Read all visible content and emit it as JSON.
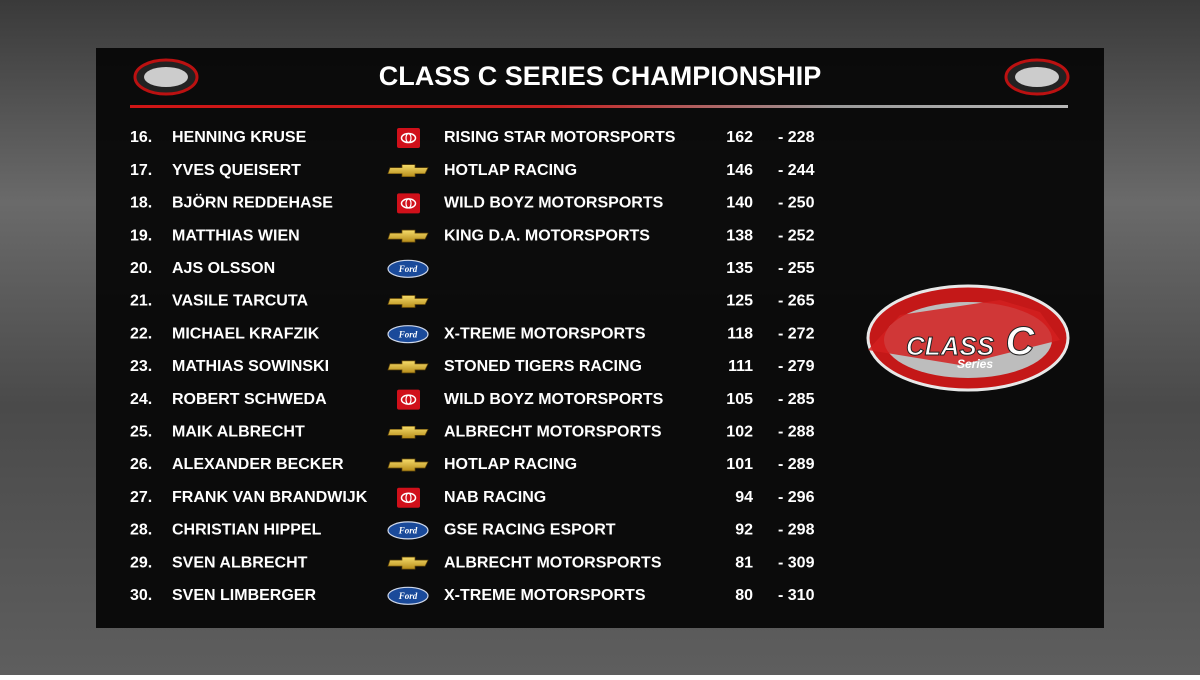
{
  "header": {
    "title": "CLASS C SERIES CHAMPIONSHIP"
  },
  "logo": {
    "main": "CLASS",
    "letter": "C",
    "sub": "Series"
  },
  "table": {
    "rows": [
      {
        "pos": "16.",
        "driver": "HENNING KRUSE",
        "make": "toyota",
        "team": "RISING STAR MOTORSPORTS",
        "points": 162,
        "gap": "- 228"
      },
      {
        "pos": "17.",
        "driver": "YVES QUEISERT",
        "make": "chevrolet",
        "team": "HOTLAP RACING",
        "points": 146,
        "gap": "- 244"
      },
      {
        "pos": "18.",
        "driver": "BJÖRN REDDEHASE",
        "make": "toyota",
        "team": "WILD BOYZ MOTORSPORTS",
        "points": 140,
        "gap": "- 250"
      },
      {
        "pos": "19.",
        "driver": "MATTHIAS WIEN",
        "make": "chevrolet",
        "team": "KING D.A. MOTORSPORTS",
        "points": 138,
        "gap": "- 252"
      },
      {
        "pos": "20.",
        "driver": "AJS OLSSON",
        "make": "Ford",
        "team": null,
        "points": 135,
        "gap": "- 255"
      },
      {
        "pos": "21.",
        "driver": "VASILE TARCUTA",
        "make": "chevrolet",
        "team": null,
        "points": 125,
        "gap": "- 265"
      },
      {
        "pos": "22.",
        "driver": "MICHAEL KRAFZIK",
        "make": "Ford",
        "team": "X-TREME MOTORSPORTS",
        "points": 118,
        "gap": "- 272"
      },
      {
        "pos": "23.",
        "driver": "MATHIAS SOWINSKI",
        "make": "chevrolet",
        "team": "STONED TIGERS RACING",
        "points": 111,
        "gap": "- 279"
      },
      {
        "pos": "24.",
        "driver": "ROBERT SCHWEDA",
        "make": "toyota",
        "team": "WILD BOYZ MOTORSPORTS",
        "points": 105,
        "gap": "- 285"
      },
      {
        "pos": "25.",
        "driver": "MAIK ALBRECHT",
        "make": "chevrolet",
        "team": "ALBRECHT MOTORSPORTS",
        "points": 102,
        "gap": "- 288"
      },
      {
        "pos": "26.",
        "driver": "ALEXANDER BECKER",
        "make": "chevrolet",
        "team": "HOTLAP RACING",
        "points": 101,
        "gap": "- 289"
      },
      {
        "pos": "27.",
        "driver": "FRANK VAN BRANDWIJK",
        "make": "toyota",
        "team": "NAB RACING",
        "points": 94,
        "gap": "- 296"
      },
      {
        "pos": "28.",
        "driver": "CHRISTIAN HIPPEL",
        "make": "Ford",
        "team": "GSE RACING ESPORT",
        "points": 92,
        "gap": "- 298"
      },
      {
        "pos": "29.",
        "driver": "SVEN ALBRECHT",
        "make": "chevrolet",
        "team": "ALBRECHT MOTORSPORTS",
        "points": 81,
        "gap": "- 309"
      },
      {
        "pos": "30.",
        "driver": "SVEN LIMBERGER",
        "make": "Ford",
        "team": "X-TREME MOTORSPORTS",
        "points": 80,
        "gap": "- 310"
      }
    ]
  }
}
